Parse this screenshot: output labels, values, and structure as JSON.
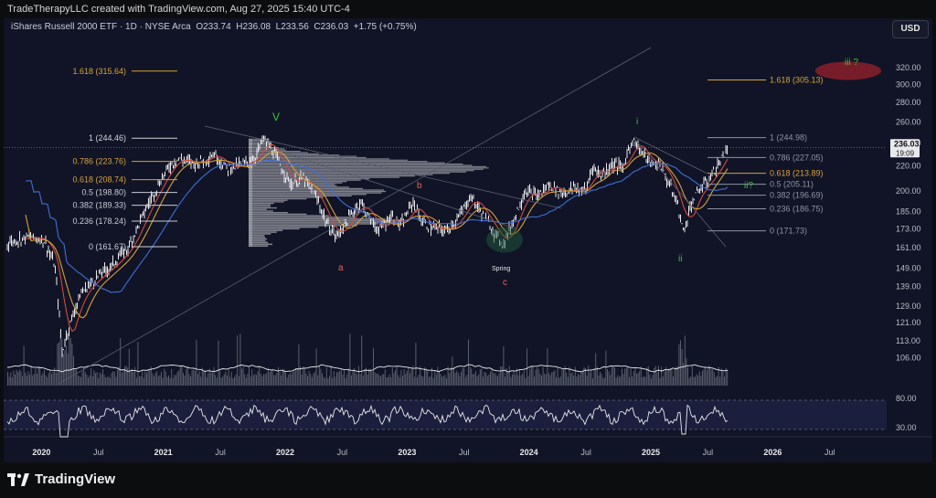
{
  "header": {
    "text": "TradeTherapyLLC created with TradingView.com, Aug 27, 2025 15:40 UTC-4"
  },
  "symbol_info": {
    "name": "iShares Russell 2000 ETF · 1D · NYSE Arca",
    "o_label": "O",
    "o": "233.74",
    "h_label": "H",
    "h": "236.08",
    "l_label": "L",
    "l": "233.56",
    "c_label": "C",
    "c": "236.03",
    "change": "+1.75 (+0.75%)"
  },
  "currency_button": "USD",
  "price_axis": {
    "labels": [
      "320.00",
      "300.00",
      "280.00",
      "260.00",
      "240.00",
      "220.00",
      "200.00",
      "185.00",
      "173.00",
      "161.00",
      "149.00",
      "139.00",
      "129.00",
      "121.00",
      "113.00",
      "106.00"
    ],
    "current_price": "236.03",
    "countdown": "19:09"
  },
  "rsi_axis": {
    "labels": [
      "80.00",
      "30.00"
    ]
  },
  "time_axis": {
    "labels": [
      {
        "text": "2020",
        "bold": true
      },
      {
        "text": "Jul",
        "bold": false
      },
      {
        "text": "2021",
        "bold": true
      },
      {
        "text": "Jul",
        "bold": false
      },
      {
        "text": "2022",
        "bold": true
      },
      {
        "text": "Jul",
        "bold": false
      },
      {
        "text": "2023",
        "bold": true
      },
      {
        "text": "Jul",
        "bold": false
      },
      {
        "text": "2024",
        "bold": true
      },
      {
        "text": "Jul",
        "bold": false
      },
      {
        "text": "2025",
        "bold": true
      },
      {
        "text": "Jul",
        "bold": false
      },
      {
        "text": "2026",
        "bold": true
      },
      {
        "text": "Jul",
        "bold": false
      }
    ]
  },
  "fib_left": [
    {
      "label": "1.618 (315.64)",
      "color": "#d4a23a"
    },
    {
      "label": "1 (244.46)",
      "color": "#d0d3dc"
    },
    {
      "label": "0.786 (223.76)",
      "color": "#d4a23a"
    },
    {
      "label": "0.618 (208.74)",
      "color": "#d4a23a"
    },
    {
      "label": "0.5 (198.80)",
      "color": "#c8cbd6"
    },
    {
      "label": "0.382 (189.33)",
      "color": "#c8cbd6"
    },
    {
      "label": "0.236 (178.24)",
      "color": "#c8cbd6"
    },
    {
      "label": "0 (161.67)",
      "color": "#d0d3dc"
    }
  ],
  "fib_right": [
    {
      "label": "1.618 (305.13)",
      "color": "#d4a23a"
    },
    {
      "label": "1 (244.98)",
      "color": "#8e93a3"
    },
    {
      "label": "0.786 (227.05)",
      "color": "#8e93a3"
    },
    {
      "label": "0.618 (213.89)",
      "color": "#d4a23a"
    },
    {
      "label": "0.5 (205.11)",
      "color": "#8e93a3"
    },
    {
      "label": "0.382 (196.69)",
      "color": "#8e93a3"
    },
    {
      "label": "0.236 (186.75)",
      "color": "#8e93a3"
    },
    {
      "label": "0 (171.73)",
      "color": "#8e93a3"
    }
  ],
  "wave_labels": {
    "V": "V",
    "a": "a",
    "b": "b",
    "c": "c",
    "spring": "Spring",
    "i": "i",
    "ii": "ii",
    "ii_q": "ii?",
    "iii_q": "iii ?"
  },
  "colors": {
    "bg": "#111426",
    "candles": "#e8e8ec",
    "ma_fast": "#d64a3a",
    "ma_mid": "#d4a23a",
    "ma_slow": "#3e6ed8",
    "green": "#37c837",
    "red_label": "#e0645a"
  },
  "footer": {
    "logo_text": "TradingView"
  },
  "chart_data": {
    "type": "line",
    "title": "iShares Russell 2000 ETF · 1D · NYSE Arca",
    "x": [
      "2020-01",
      "2020-03",
      "2020-06",
      "2020-09",
      "2020-12",
      "2021-03",
      "2021-06",
      "2021-09",
      "2021-11",
      "2022-03",
      "2022-06",
      "2022-09",
      "2022-12",
      "2023-03",
      "2023-07",
      "2023-10",
      "2023-12",
      "2024-03",
      "2024-07",
      "2024-11",
      "2025-01",
      "2025-04",
      "2025-06",
      "2025-08"
    ],
    "series": [
      {
        "values": [
          165,
          112,
          150,
          152,
          195,
          225,
          228,
          222,
          244,
          205,
          168,
          170,
          180,
          174,
          194,
          165,
          205,
          207,
          222,
          244,
          222,
          170,
          210,
          236
        ]
      }
    ],
    "ylim": [
      100,
      330
    ],
    "y_scale": "log",
    "grid": false
  }
}
